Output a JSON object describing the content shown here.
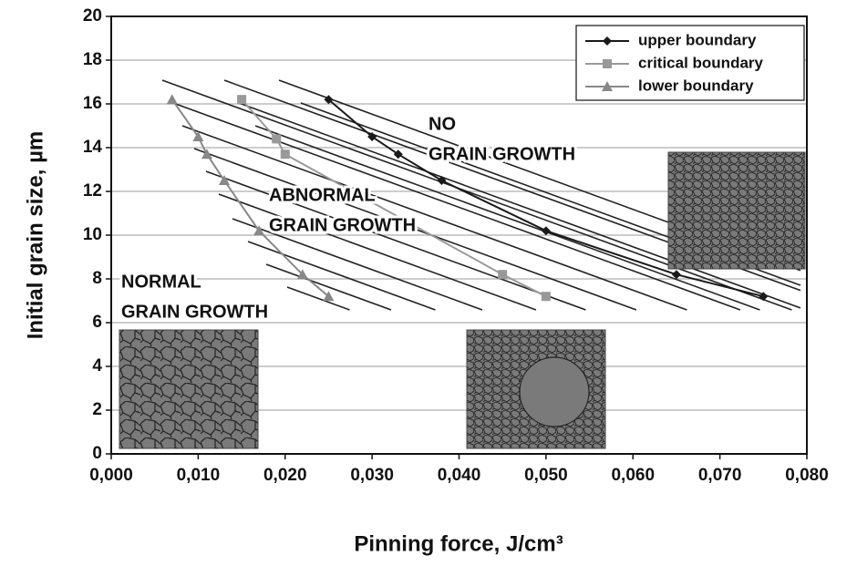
{
  "chart_data": {
    "type": "line",
    "xlabel": "Pinning force, J/cm³",
    "ylabel": "Initial grain size, µm",
    "xlim": [
      0,
      0.08
    ],
    "ylim": [
      0,
      20
    ],
    "xticks": [
      {
        "value": 0,
        "label": "0,000"
      },
      {
        "value": 0.01,
        "label": "0,010"
      },
      {
        "value": 0.02,
        "label": "0,020"
      },
      {
        "value": 0.03,
        "label": "0,030"
      },
      {
        "value": 0.04,
        "label": "0,040"
      },
      {
        "value": 0.05,
        "label": "0,050"
      },
      {
        "value": 0.06,
        "label": "0,060"
      },
      {
        "value": 0.07,
        "label": "0,070"
      },
      {
        "value": 0.08,
        "label": "0,080"
      }
    ],
    "yticks": [
      0,
      2,
      4,
      6,
      8,
      10,
      12,
      14,
      16,
      18,
      20
    ],
    "grid": true,
    "legend": "top-right",
    "series": [
      {
        "name": "upper boundary",
        "color": "#1a1a1a",
        "marker": "diamond",
        "x": [
          0.025,
          0.03,
          0.033,
          0.038,
          0.05,
          0.065,
          0.075
        ],
        "values": [
          16.2,
          14.5,
          13.7,
          12.5,
          10.2,
          8.2,
          7.2
        ]
      },
      {
        "name": "critical boundary",
        "color": "#999999",
        "marker": "square",
        "x": [
          0.015,
          0.019,
          0.02,
          0.045,
          0.05
        ],
        "values": [
          16.2,
          14.4,
          13.7,
          8.2,
          7.2
        ]
      },
      {
        "name": "lower boundary",
        "color": "#888888",
        "marker": "triangle",
        "x": [
          0.007,
          0.01,
          0.011,
          0.013,
          0.017,
          0.022,
          0.025
        ],
        "values": [
          16.2,
          14.5,
          13.7,
          12.5,
          10.2,
          8.2,
          7.2
        ]
      }
    ],
    "annotations": [
      [
        "NO",
        "GRAIN GROWTH"
      ],
      [
        "ABNORMAL",
        "GRAIN GROWTH"
      ],
      [
        "NORMAL",
        "GRAIN GROWTH"
      ]
    ]
  }
}
